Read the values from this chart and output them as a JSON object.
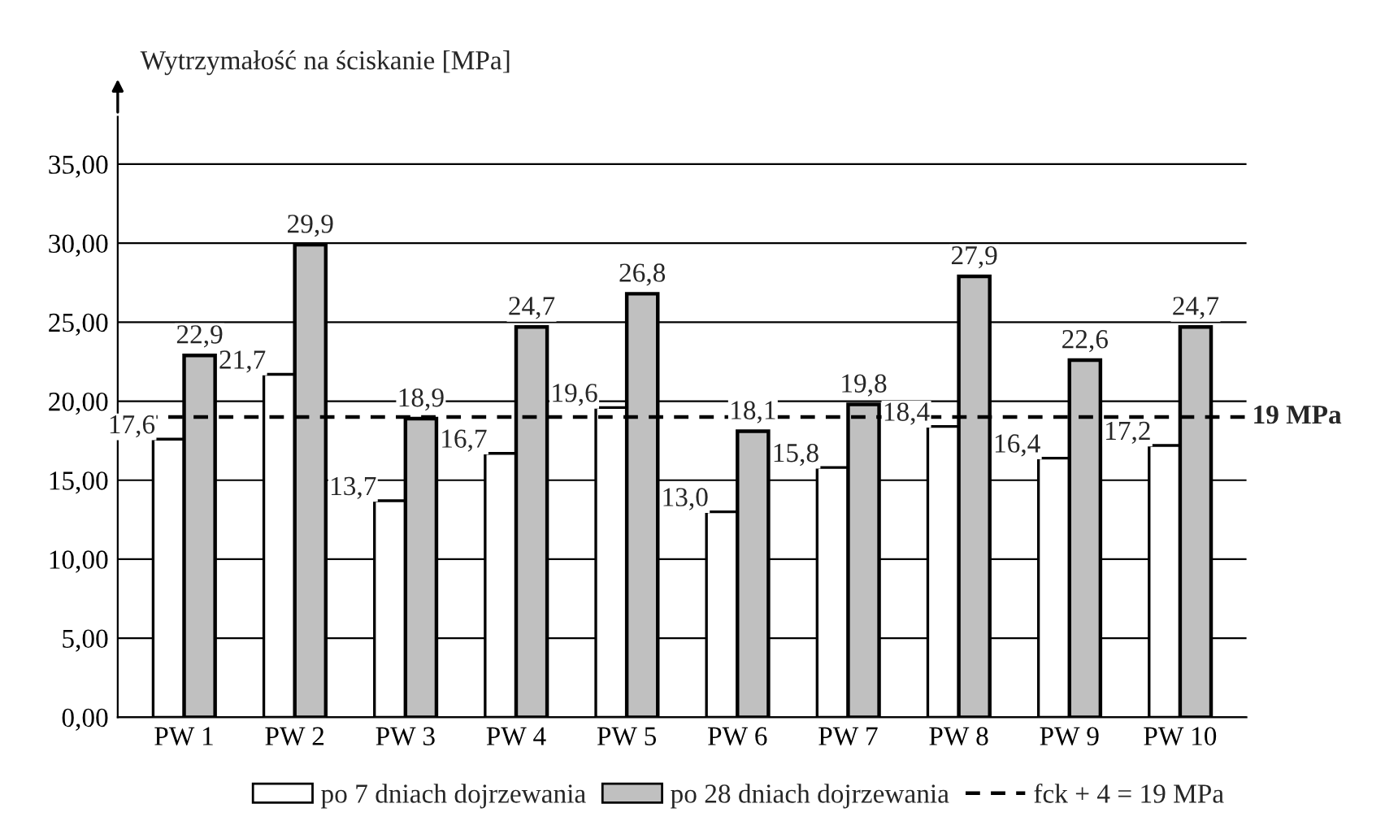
{
  "chart_data": {
    "type": "bar",
    "ylabel": "Wytrzymałość na ściskanie [MPa]",
    "categories": [
      "PW 1",
      "PW 2",
      "PW 3",
      "PW 4",
      "PW 5",
      "PW 6",
      "PW 7",
      "PW 8",
      "PW 9",
      "PW 10"
    ],
    "series": [
      {
        "name": "po 7 dniach dojrzewania",
        "color": "#ffffff",
        "values": [
          17.6,
          21.7,
          13.7,
          16.7,
          19.6,
          13.0,
          15.8,
          18.4,
          16.4,
          17.2
        ],
        "value_labels": [
          "17,6",
          "21,7",
          "13,7",
          "16,7",
          "19,6",
          "13,0",
          "15,8",
          "18,4",
          "16,4",
          "17,2"
        ]
      },
      {
        "name": "po 28 dniach dojrzewania",
        "color": "#c0c0c0",
        "values": [
          22.9,
          29.9,
          18.9,
          24.7,
          26.8,
          18.1,
          19.8,
          27.9,
          22.6,
          24.7
        ],
        "value_labels": [
          "22,9",
          "29,9",
          "18,9",
          "24,7",
          "26,8",
          "18,1",
          "19,8",
          "27,9",
          "22,6",
          "24,7"
        ]
      }
    ],
    "ylim": [
      0,
      38
    ],
    "yticks": [
      {
        "value": 0,
        "label": "0,00"
      },
      {
        "value": 5,
        "label": "5,00"
      },
      {
        "value": 10,
        "label": "10,00"
      },
      {
        "value": 15,
        "label": "15,00"
      },
      {
        "value": 20,
        "label": "20,00"
      },
      {
        "value": 25,
        "label": "25,00"
      },
      {
        "value": 30,
        "label": "30,00"
      },
      {
        "value": 35,
        "label": "35,00"
      }
    ],
    "ref_lines": [
      {
        "axis": "y",
        "value": 19,
        "label": "19 MPa",
        "color": "#000000",
        "line_style": "dashed"
      }
    ],
    "annotations": [
      "fck + 4 = 19 MPa"
    ],
    "grid": "y",
    "legend": "bottom"
  }
}
